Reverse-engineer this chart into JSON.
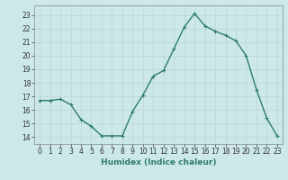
{
  "x": [
    0,
    1,
    2,
    3,
    4,
    5,
    6,
    7,
    8,
    9,
    10,
    11,
    12,
    13,
    14,
    15,
    16,
    17,
    18,
    19,
    20,
    21,
    22,
    23
  ],
  "y": [
    16.7,
    16.7,
    16.8,
    16.4,
    15.3,
    14.8,
    14.1,
    14.1,
    14.1,
    15.9,
    17.1,
    18.5,
    18.9,
    20.5,
    22.1,
    23.1,
    22.2,
    21.8,
    21.5,
    21.1,
    20.0,
    17.5,
    15.4,
    14.1
  ],
  "xlim": [
    -0.5,
    23.5
  ],
  "ylim": [
    13.5,
    23.7
  ],
  "yticks": [
    14,
    15,
    16,
    17,
    18,
    19,
    20,
    21,
    22,
    23
  ],
  "xticks": [
    0,
    1,
    2,
    3,
    4,
    5,
    6,
    7,
    8,
    9,
    10,
    11,
    12,
    13,
    14,
    15,
    16,
    17,
    18,
    19,
    20,
    21,
    22,
    23
  ],
  "xlabel": "Humidex (Indice chaleur)",
  "line_color": "#2e7d6e",
  "marker": "+",
  "marker_size": 3,
  "bg_color": "#cce8e8",
  "grid_color": "#b8d4d4",
  "xlabel_fontsize": 6.5,
  "tick_fontsize": 5.5,
  "line_width": 1.0
}
